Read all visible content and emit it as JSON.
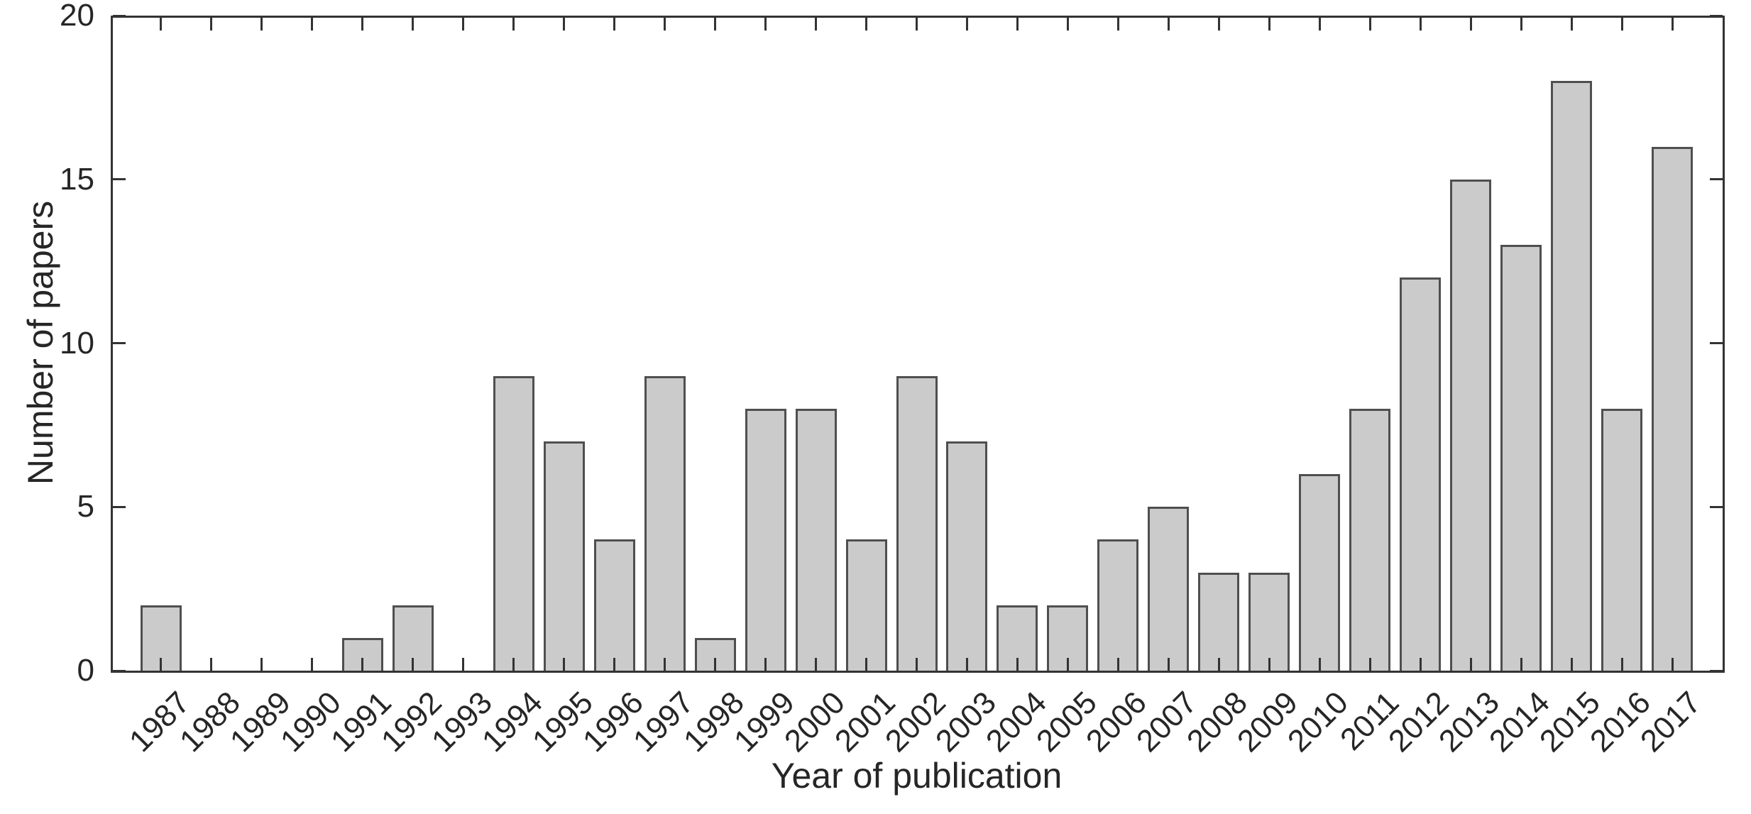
{
  "chart_data": {
    "type": "bar",
    "title": "",
    "xlabel": "Year of publication",
    "ylabel": "Number of papers",
    "categories": [
      "1987",
      "1988",
      "1989",
      "1990",
      "1991",
      "1992",
      "1993",
      "1994",
      "1995",
      "1996",
      "1997",
      "1998",
      "1999",
      "2000",
      "2001",
      "2002",
      "2003",
      "2004",
      "2005",
      "2006",
      "2007",
      "2008",
      "2009",
      "2010",
      "2011",
      "2012",
      "2013",
      "2014",
      "2015",
      "2016",
      "2017"
    ],
    "values": [
      2,
      0,
      0,
      0,
      1,
      2,
      0,
      9,
      7,
      4,
      9,
      1,
      8,
      8,
      4,
      9,
      7,
      2,
      2,
      4,
      5,
      3,
      3,
      6,
      8,
      12,
      15,
      13,
      18,
      8,
      16
    ],
    "ylim": [
      0,
      20
    ],
    "yticks": [
      0,
      5,
      10,
      15,
      20
    ],
    "x_tick_rotation_deg": -45,
    "grid": false,
    "legend": null,
    "bar_fill": "#cbcbcb",
    "bar_edge": "#4f4f4f",
    "axis_color": "#333333",
    "text_color": "#262626",
    "background": "#ffffff"
  }
}
